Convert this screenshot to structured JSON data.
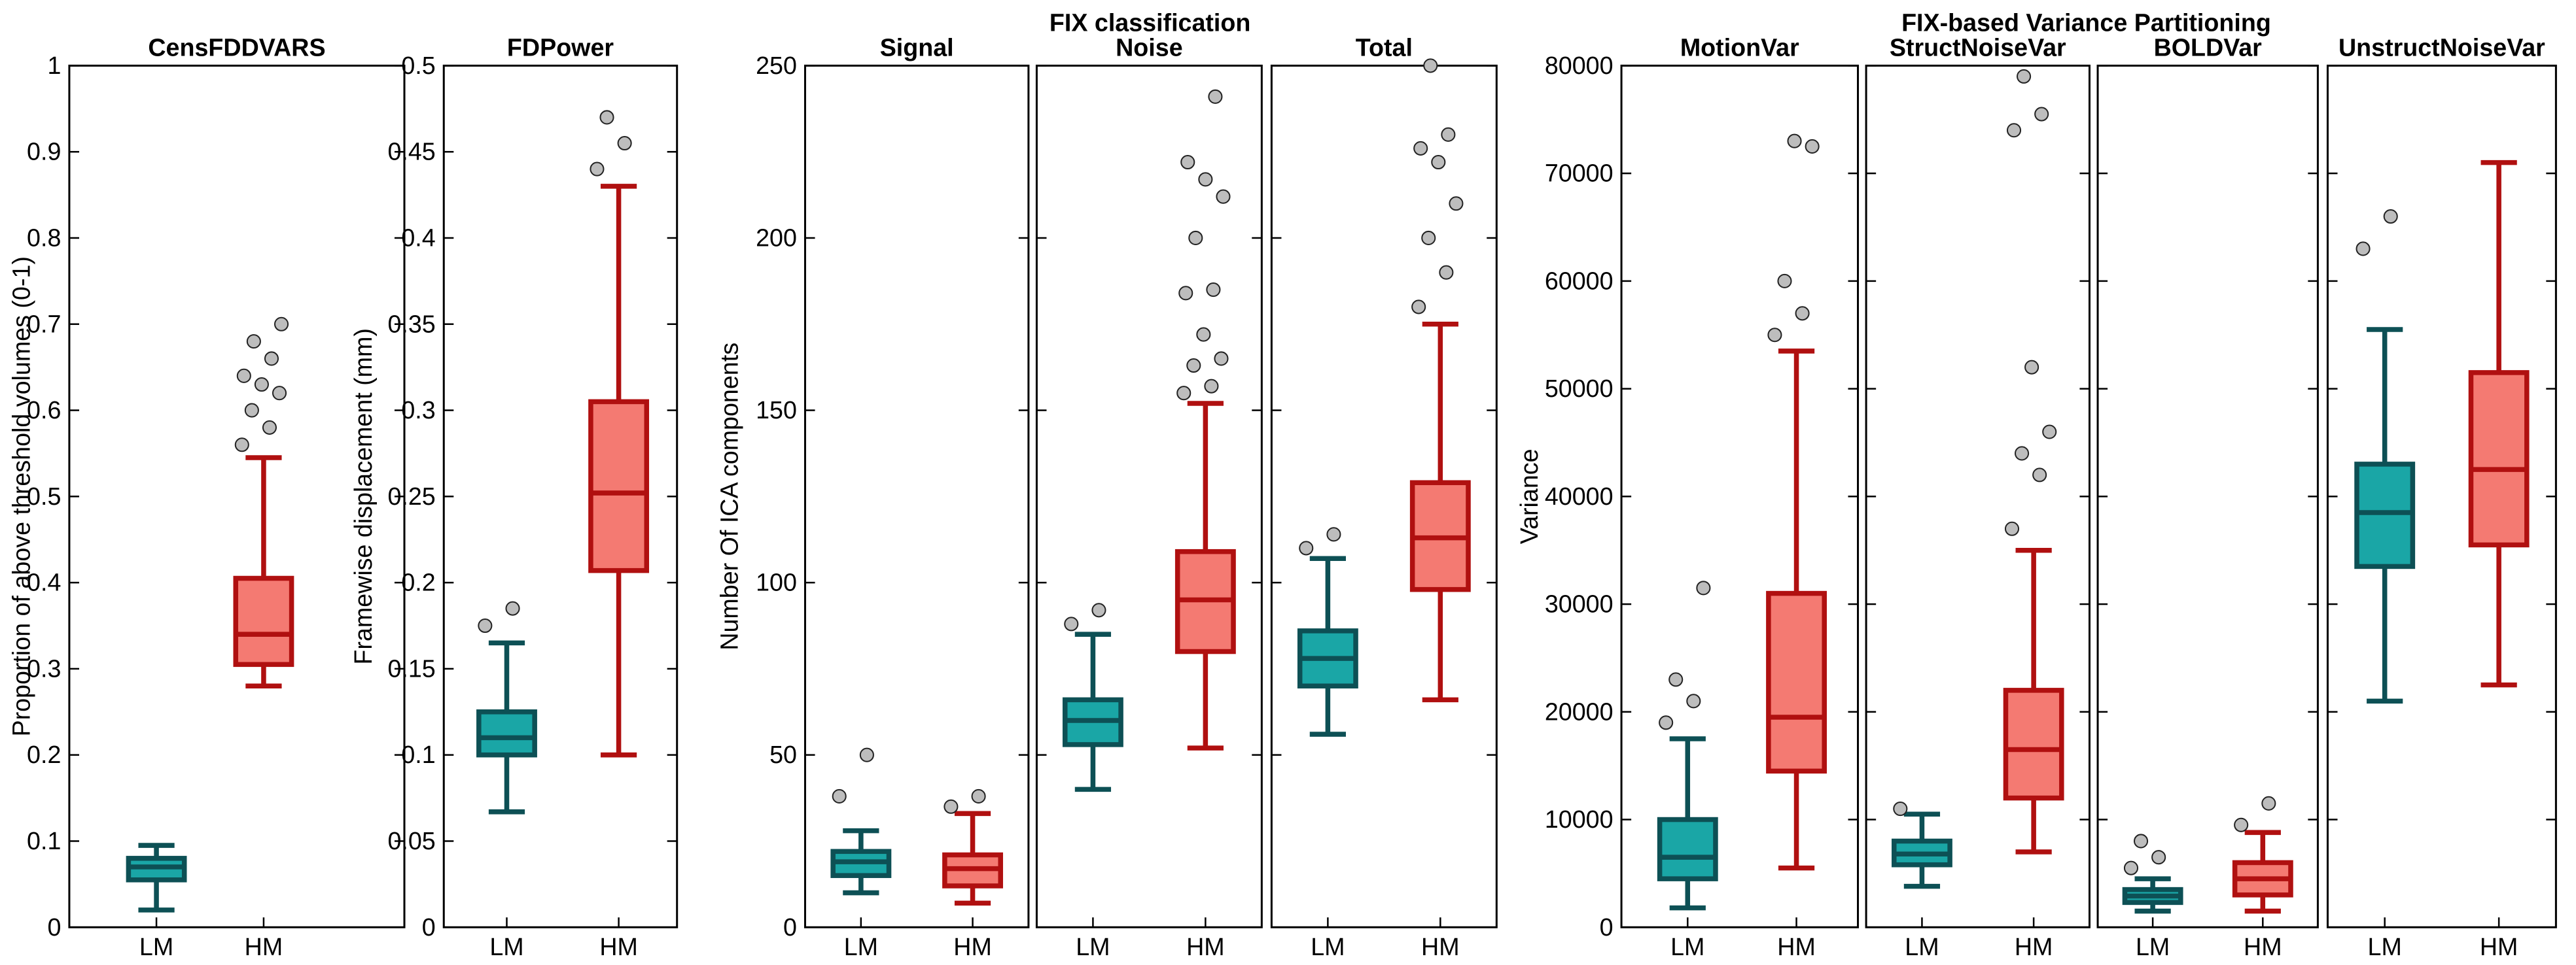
{
  "chart_data": [
    {
      "type": "box",
      "title": "CensFDDVARS",
      "ylabel": "Proportion of above threshold volumes (0-1)",
      "ylim": [
        0,
        1
      ],
      "yticks": [
        0,
        0.1,
        0.2,
        0.3,
        0.4,
        0.5,
        0.6,
        0.7,
        0.8,
        0.9,
        1
      ],
      "show_tick_labels": true,
      "categories": [
        "LM",
        "HM"
      ],
      "fill_colors": [
        "#1aa6a6",
        "#f47a72"
      ],
      "edge_colors": [
        "#0d5055",
        "#b01010"
      ],
      "boxes": [
        {
          "whisker_low": 0.02,
          "q1": 0.055,
          "median": 0.07,
          "q3": 0.08,
          "whisker_high": 0.095,
          "outliers": []
        },
        {
          "whisker_low": 0.28,
          "q1": 0.305,
          "median": 0.34,
          "q3": 0.405,
          "whisker_high": 0.545,
          "outliers": [
            0.56,
            0.58,
            0.6,
            0.62,
            0.63,
            0.64,
            0.66,
            0.68,
            0.7
          ]
        }
      ]
    },
    {
      "type": "box",
      "title": "FDPower",
      "ylabel": "Framewise displacement (mm)",
      "ylim": [
        0,
        0.5
      ],
      "yticks": [
        0,
        0.05,
        0.1,
        0.15,
        0.2,
        0.25,
        0.3,
        0.35,
        0.4,
        0.45,
        0.5
      ],
      "show_tick_labels": true,
      "categories": [
        "LM",
        "HM"
      ],
      "fill_colors": [
        "#1aa6a6",
        "#f47a72"
      ],
      "edge_colors": [
        "#0d5055",
        "#b01010"
      ],
      "boxes": [
        {
          "whisker_low": 0.067,
          "q1": 0.1,
          "median": 0.11,
          "q3": 0.125,
          "whisker_high": 0.165,
          "outliers": [
            0.175,
            0.185
          ]
        },
        {
          "whisker_low": 0.1,
          "q1": 0.207,
          "median": 0.252,
          "q3": 0.305,
          "whisker_high": 0.43,
          "outliers": [
            0.44,
            0.455,
            0.47
          ]
        }
      ]
    },
    {
      "type": "box",
      "title": "Signal",
      "ylabel": "Number Of ICA components",
      "ylim": [
        0,
        250
      ],
      "yticks": [
        0,
        50,
        100,
        150,
        200,
        250
      ],
      "show_tick_labels": true,
      "categories": [
        "LM",
        "HM"
      ],
      "fill_colors": [
        "#1aa6a6",
        "#f47a72"
      ],
      "edge_colors": [
        "#0d5055",
        "#b01010"
      ],
      "boxes": [
        {
          "whisker_low": 10,
          "q1": 15,
          "median": 19,
          "q3": 22,
          "whisker_high": 28,
          "outliers": [
            38,
            50
          ]
        },
        {
          "whisker_low": 7,
          "q1": 12,
          "median": 17,
          "q3": 21,
          "whisker_high": 33,
          "outliers": [
            35,
            38
          ]
        }
      ]
    },
    {
      "type": "box",
      "title": "Noise",
      "suptitle": "FIX classification",
      "ylim": [
        0,
        250
      ],
      "yticks": [
        0,
        50,
        100,
        150,
        200,
        250
      ],
      "show_tick_labels": false,
      "categories": [
        "LM",
        "HM"
      ],
      "fill_colors": [
        "#1aa6a6",
        "#f47a72"
      ],
      "edge_colors": [
        "#0d5055",
        "#b01010"
      ],
      "boxes": [
        {
          "whisker_low": 40,
          "q1": 53,
          "median": 60,
          "q3": 66,
          "whisker_high": 85,
          "outliers": [
            88,
            92
          ]
        },
        {
          "whisker_low": 52,
          "q1": 80,
          "median": 95,
          "q3": 109,
          "whisker_high": 152,
          "outliers": [
            155,
            157,
            163,
            165,
            172,
            184,
            185,
            200,
            212,
            217,
            222,
            241
          ]
        }
      ]
    },
    {
      "type": "box",
      "title": "Total",
      "ylim": [
        0,
        250
      ],
      "yticks": [
        0,
        50,
        100,
        150,
        200,
        250
      ],
      "show_tick_labels": false,
      "categories": [
        "LM",
        "HM"
      ],
      "fill_colors": [
        "#1aa6a6",
        "#f47a72"
      ],
      "edge_colors": [
        "#0d5055",
        "#b01010"
      ],
      "boxes": [
        {
          "whisker_low": 56,
          "q1": 70,
          "median": 78,
          "q3": 86,
          "whisker_high": 107,
          "outliers": [
            110,
            114
          ]
        },
        {
          "whisker_low": 66,
          "q1": 98,
          "median": 113,
          "q3": 129,
          "whisker_high": 175,
          "outliers": [
            180,
            190,
            200,
            210,
            222,
            226,
            230,
            250
          ]
        }
      ]
    },
    {
      "type": "box",
      "title": "MotionVar",
      "ylabel": "Variance",
      "ylim": [
        0,
        80000
      ],
      "yticks": [
        0,
        10000,
        20000,
        30000,
        40000,
        50000,
        60000,
        70000,
        80000
      ],
      "show_tick_labels": true,
      "categories": [
        "LM",
        "HM"
      ],
      "fill_colors": [
        "#1aa6a6",
        "#f47a72"
      ],
      "edge_colors": [
        "#0d5055",
        "#b01010"
      ],
      "boxes": [
        {
          "whisker_low": 1800,
          "q1": 4500,
          "median": 6500,
          "q3": 10000,
          "whisker_high": 17500,
          "outliers": [
            19000,
            21000,
            23000,
            31500
          ]
        },
        {
          "whisker_low": 5500,
          "q1": 14500,
          "median": 19500,
          "q3": 31000,
          "whisker_high": 53500,
          "outliers": [
            55000,
            57000,
            60000,
            72500,
            73000
          ]
        }
      ]
    },
    {
      "type": "box",
      "title": "StructNoiseVar",
      "suptitle": "FIX-based Variance Partitioning",
      "ylim": [
        0,
        80000
      ],
      "yticks": [
        0,
        10000,
        20000,
        30000,
        40000,
        50000,
        60000,
        70000,
        80000
      ],
      "show_tick_labels": false,
      "categories": [
        "LM",
        "HM"
      ],
      "fill_colors": [
        "#1aa6a6",
        "#f47a72"
      ],
      "edge_colors": [
        "#0d5055",
        "#b01010"
      ],
      "boxes": [
        {
          "whisker_low": 3800,
          "q1": 5800,
          "median": 6800,
          "q3": 8000,
          "whisker_high": 10500,
          "outliers": [
            11000
          ]
        },
        {
          "whisker_low": 7000,
          "q1": 12000,
          "median": 16500,
          "q3": 22000,
          "whisker_high": 35000,
          "outliers": [
            37000,
            42000,
            44000,
            46000,
            52000,
            74000,
            75500,
            79000
          ]
        }
      ]
    },
    {
      "type": "box",
      "title": "BOLDVar",
      "ylim": [
        0,
        80000
      ],
      "yticks": [
        0,
        10000,
        20000,
        30000,
        40000,
        50000,
        60000,
        70000,
        80000
      ],
      "show_tick_labels": false,
      "categories": [
        "LM",
        "HM"
      ],
      "fill_colors": [
        "#1aa6a6",
        "#f47a72"
      ],
      "edge_colors": [
        "#0d5055",
        "#b01010"
      ],
      "boxes": [
        {
          "whisker_low": 1500,
          "q1": 2300,
          "median": 2900,
          "q3": 3500,
          "whisker_high": 4500,
          "outliers": [
            5500,
            6500,
            8000
          ]
        },
        {
          "whisker_low": 1500,
          "q1": 3000,
          "median": 4500,
          "q3": 6000,
          "whisker_high": 8800,
          "outliers": [
            9500,
            11500
          ]
        }
      ]
    },
    {
      "type": "box",
      "title": "UnstructNoiseVar",
      "ylim": [
        0,
        80000
      ],
      "yticks": [
        0,
        10000,
        20000,
        30000,
        40000,
        50000,
        60000,
        70000,
        80000
      ],
      "show_tick_labels": false,
      "categories": [
        "LM",
        "HM"
      ],
      "fill_colors": [
        "#1aa6a6",
        "#f47a72"
      ],
      "edge_colors": [
        "#0d5055",
        "#b01010"
      ],
      "boxes": [
        {
          "whisker_low": 21000,
          "q1": 33500,
          "median": 38500,
          "q3": 43000,
          "whisker_high": 55500,
          "outliers": [
            63000,
            66000
          ]
        },
        {
          "whisker_low": 22500,
          "q1": 35500,
          "median": 42500,
          "q3": 51500,
          "whisker_high": 71000,
          "outliers": []
        }
      ]
    }
  ]
}
